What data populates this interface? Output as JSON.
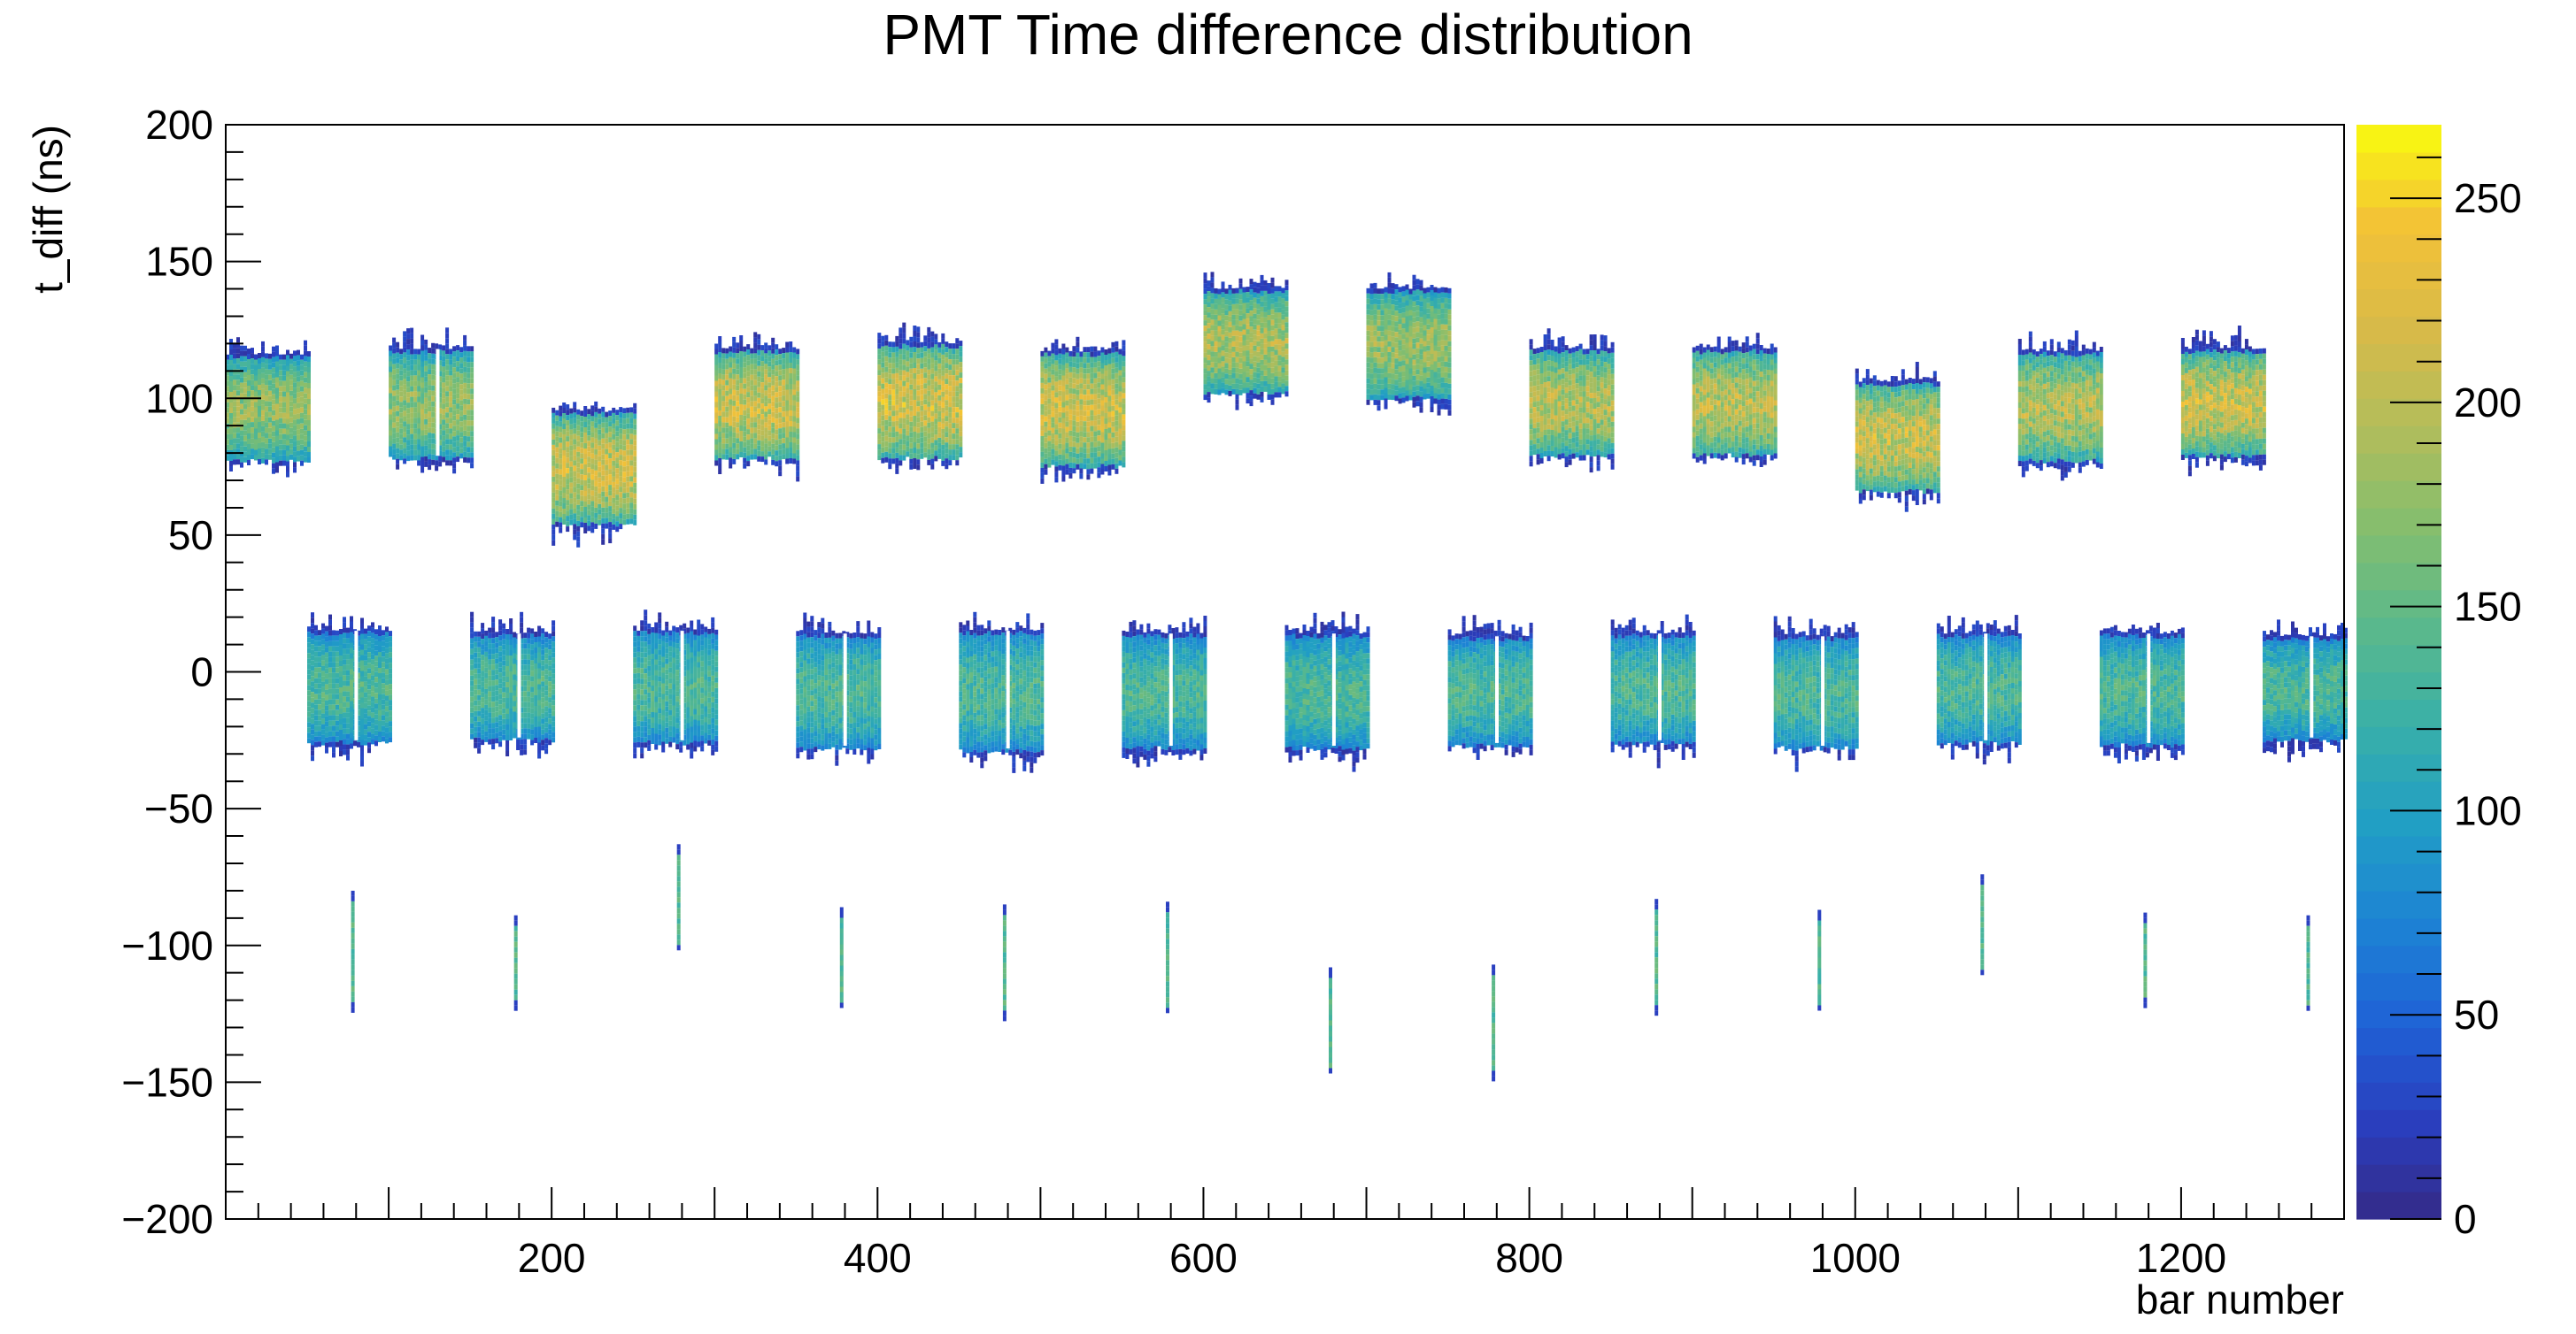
{
  "chart_data": {
    "type": "heatmap",
    "title": "PMT Time difference distribution",
    "xlabel": "bar number",
    "ylabel": "t_diff (ns)",
    "xlim": [
      0,
      1300
    ],
    "ylim": [
      -200,
      200
    ],
    "x_ticks": [
      200,
      400,
      600,
      800,
      1000,
      1200
    ],
    "y_ticks": [
      -200,
      -150,
      -100,
      -50,
      0,
      50,
      100,
      150,
      200
    ],
    "z_ticks": [
      0,
      50,
      100,
      150,
      200,
      250
    ],
    "zlim": [
      0,
      268
    ],
    "colormap": [
      "#352a87",
      "#2a3fbf",
      "#1f63d6",
      "#1d84d4",
      "#219fc4",
      "#3ab0a8",
      "#5cb98a",
      "#86be6d",
      "#b4bd5a",
      "#d9ba48",
      "#f3c237",
      "#f9fb0e"
    ],
    "upper_bands": [
      {
        "x0": 0,
        "x1": 50,
        "y0": 78,
        "y1": 116,
        "peak": 180
      },
      {
        "x0": 100,
        "x1": 150,
        "y0": 79,
        "y1": 118,
        "peak": 180
      },
      {
        "x0": 200,
        "x1": 250,
        "y0": 55,
        "y1": 95,
        "peak": 215
      },
      {
        "x0": 300,
        "x1": 350,
        "y0": 79,
        "y1": 118,
        "peak": 215
      },
      {
        "x0": 400,
        "x1": 450,
        "y0": 79,
        "y1": 120,
        "peak": 220
      },
      {
        "x0": 500,
        "x1": 550,
        "y0": 76,
        "y1": 117,
        "peak": 215
      },
      {
        "x0": 600,
        "x1": 650,
        "y0": 103,
        "y1": 140,
        "peak": 195
      },
      {
        "x0": 700,
        "x1": 750,
        "y0": 101,
        "y1": 140,
        "peak": 185
      },
      {
        "x0": 800,
        "x1": 850,
        "y0": 80,
        "y1": 118,
        "peak": 200
      },
      {
        "x0": 900,
        "x1": 950,
        "y0": 80,
        "y1": 118,
        "peak": 205
      },
      {
        "x0": 1000,
        "x1": 1050,
        "y0": 67,
        "y1": 106,
        "peak": 215
      },
      {
        "x0": 1100,
        "x1": 1150,
        "y0": 78,
        "y1": 117,
        "peak": 200
      },
      {
        "x0": 1200,
        "x1": 1250,
        "y0": 80,
        "y1": 118,
        "peak": 215
      }
    ],
    "middle_bands": [
      {
        "x0": 50,
        "x1": 100,
        "y0": -25,
        "y1": 15,
        "peak": 140
      },
      {
        "x0": 150,
        "x1": 200,
        "y0": -24,
        "y1": 14,
        "peak": 140
      },
      {
        "x0": 250,
        "x1": 300,
        "y0": -25,
        "y1": 15,
        "peak": 140
      },
      {
        "x0": 350,
        "x1": 400,
        "y0": -27,
        "y1": 14,
        "peak": 140
      },
      {
        "x0": 450,
        "x1": 500,
        "y0": -28,
        "y1": 15,
        "peak": 140
      },
      {
        "x0": 550,
        "x1": 600,
        "y0": -27,
        "y1": 14,
        "peak": 140
      },
      {
        "x0": 650,
        "x1": 700,
        "y0": -27,
        "y1": 14,
        "peak": 140
      },
      {
        "x0": 750,
        "x1": 800,
        "y0": -26,
        "y1": 13,
        "peak": 140
      },
      {
        "x0": 850,
        "x1": 900,
        "y0": -25,
        "y1": 14,
        "peak": 140
      },
      {
        "x0": 950,
        "x1": 1000,
        "y0": -27,
        "y1": 13,
        "peak": 140
      },
      {
        "x0": 1050,
        "x1": 1100,
        "y0": -25,
        "y1": 14,
        "peak": 140
      },
      {
        "x0": 1150,
        "x1": 1200,
        "y0": -26,
        "y1": 14,
        "peak": 140
      },
      {
        "x0": 1250,
        "x1": 1300,
        "y0": -24,
        "y1": 13,
        "peak": 140
      }
    ],
    "lower_lines": [
      {
        "x": 78,
        "y0": -124,
        "y1": -80
      },
      {
        "x": 178,
        "y0": -122,
        "y1": -89
      },
      {
        "x": 278,
        "y0": -101,
        "y1": -63
      },
      {
        "x": 378,
        "y0": -122,
        "y1": -86
      },
      {
        "x": 478,
        "y0": -126,
        "y1": -85
      },
      {
        "x": 578,
        "y0": -124,
        "y1": -84
      },
      {
        "x": 678,
        "y0": -146,
        "y1": -108
      },
      {
        "x": 778,
        "y0": -148,
        "y1": -107
      },
      {
        "x": 878,
        "y0": -124,
        "y1": -83
      },
      {
        "x": 978,
        "y0": -123,
        "y1": -87
      },
      {
        "x": 1078,
        "y0": -110,
        "y1": -74
      },
      {
        "x": 1178,
        "y0": -121,
        "y1": -88
      },
      {
        "x": 1278,
        "y0": -123,
        "y1": -89
      }
    ]
  }
}
